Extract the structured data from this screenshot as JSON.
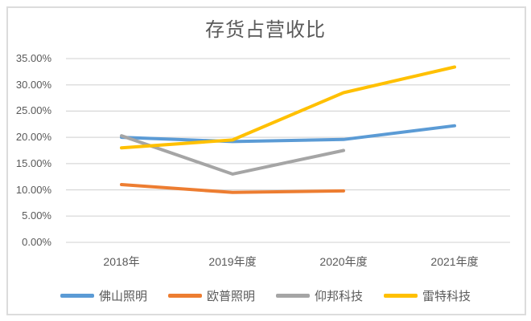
{
  "chart_data": {
    "type": "line",
    "title": "存货占营收比",
    "categories": [
      "2018年",
      "2019年度",
      "2020年度",
      "2021年度"
    ],
    "series": [
      {
        "name": "佛山照明",
        "color": "#5B9BD5",
        "values": [
          20.0,
          19.2,
          19.6,
          22.2
        ]
      },
      {
        "name": "欧普照明",
        "color": "#ED7D31",
        "values": [
          11.0,
          9.5,
          9.8,
          null
        ]
      },
      {
        "name": "仰邦科技",
        "color": "#A5A5A5",
        "values": [
          20.3,
          13.0,
          17.5,
          null
        ]
      },
      {
        "name": "雷特科技",
        "color": "#FFC000",
        "values": [
          18.0,
          19.5,
          28.5,
          33.4
        ]
      }
    ],
    "y_axis": {
      "min": 0,
      "max": 35,
      "step": 5,
      "tick_labels": [
        "0.00%",
        "5.00%",
        "10.00%",
        "15.00%",
        "20.00%",
        "25.00%",
        "30.00%",
        "35.00%"
      ]
    },
    "grid": true,
    "legend_position": "bottom"
  },
  "styles": {
    "text_color": "#595959",
    "grid_color": "#D9D9D9",
    "frame_border_color": "#DCDCDC",
    "background": "#FFFFFF",
    "line_width": 4
  }
}
